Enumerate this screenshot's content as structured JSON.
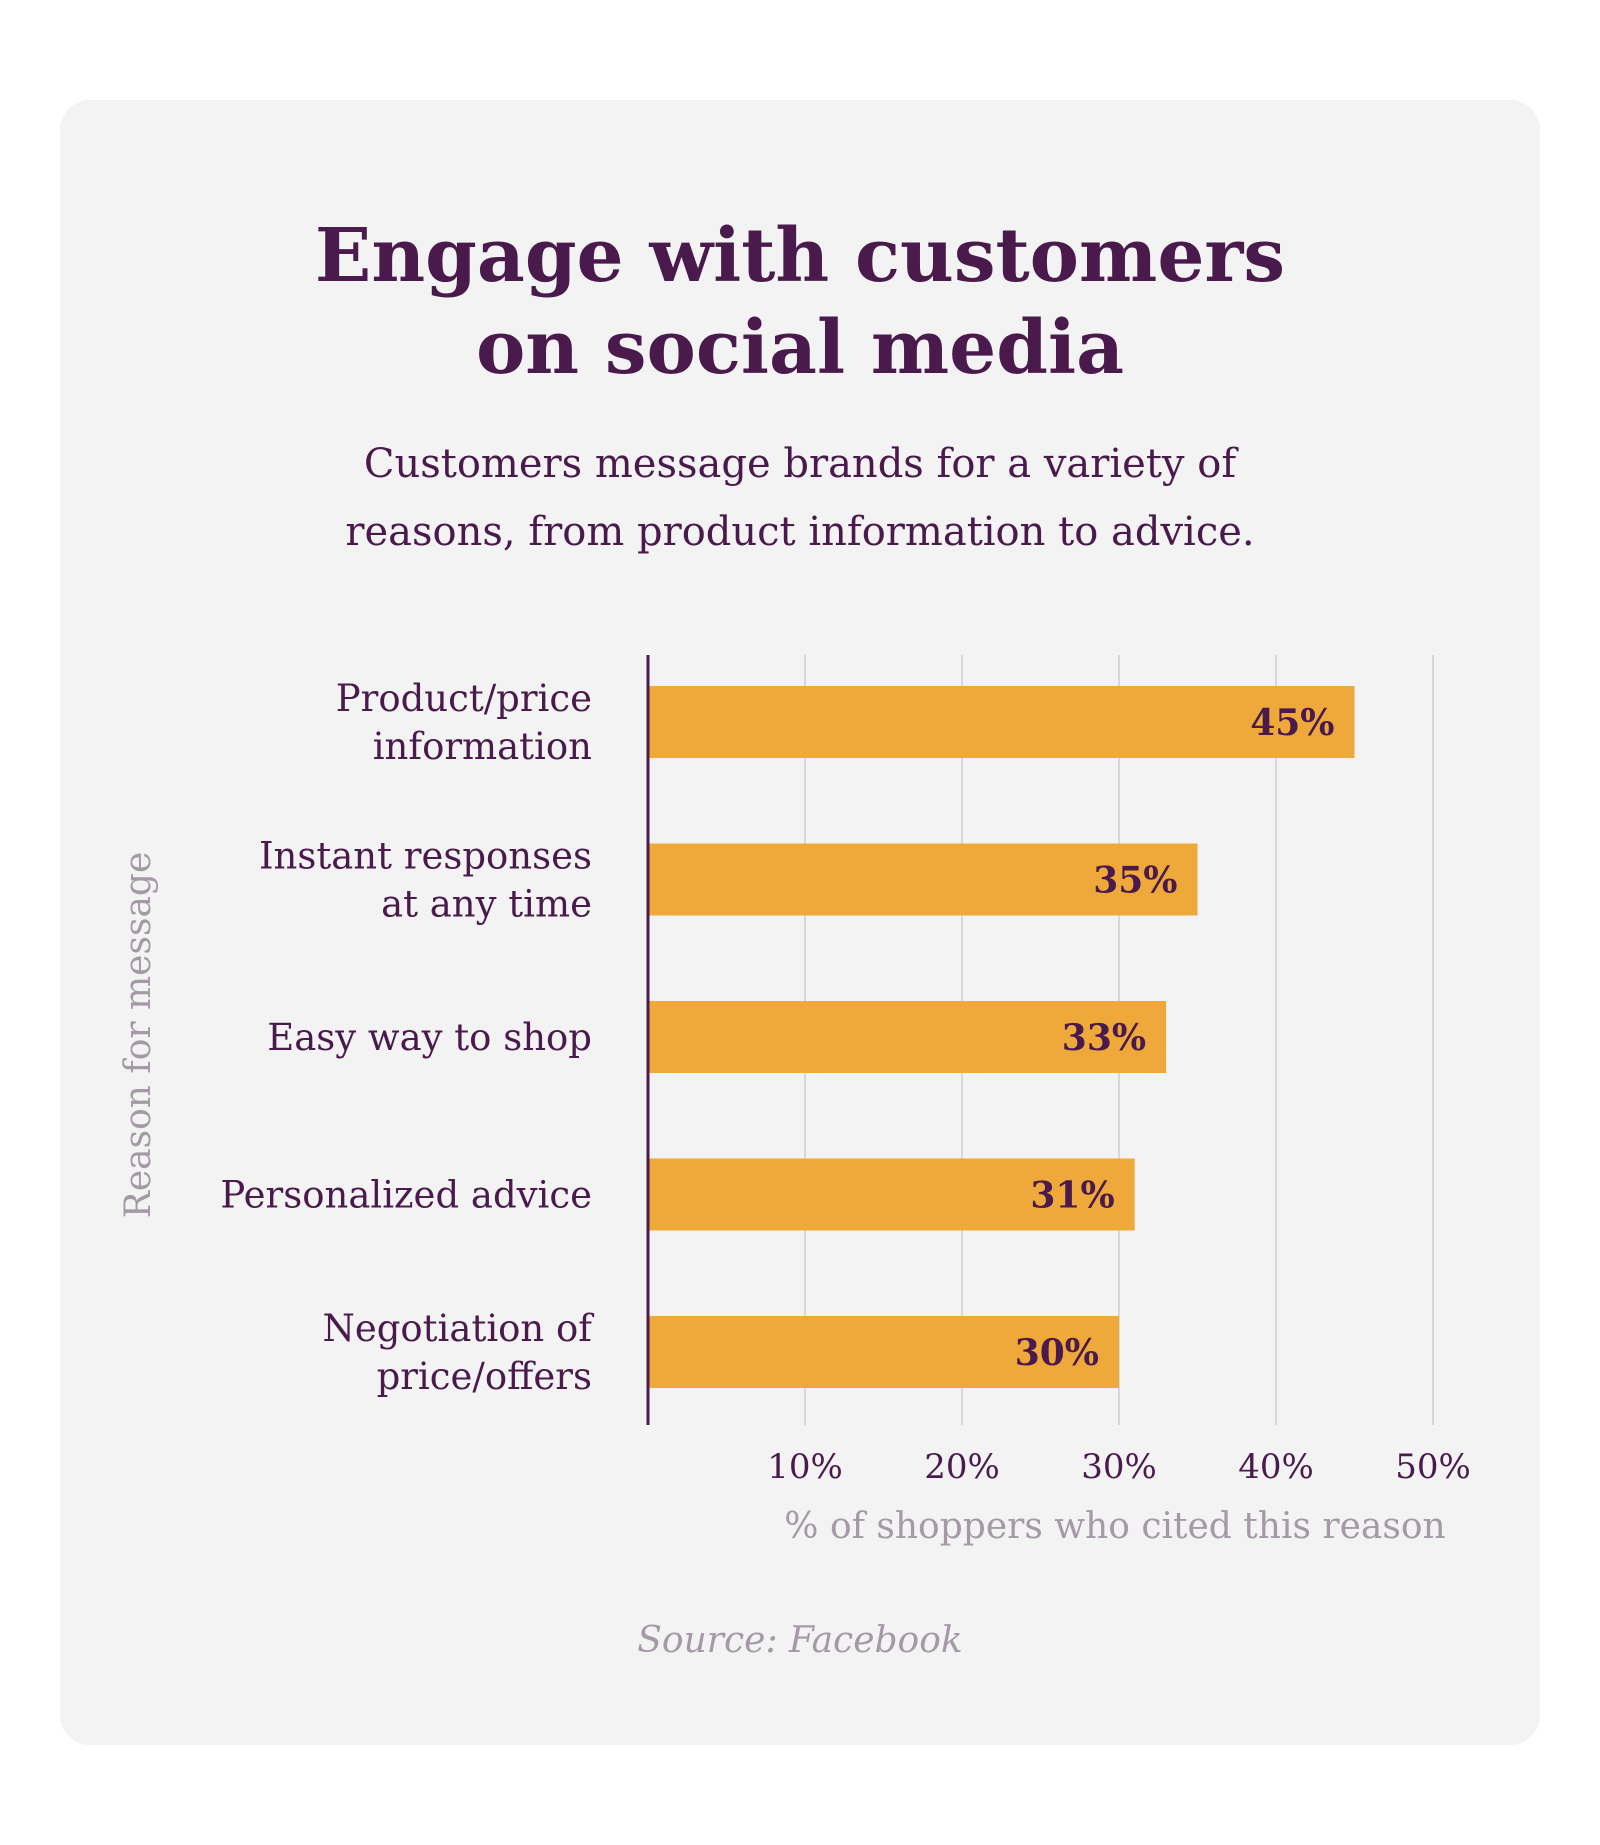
{
  "title_lines": [
    "Engage with customers",
    "on social media"
  ],
  "subtitle_lines": [
    "Customers message brands for a variety of",
    "reasons, from product information to advice."
  ],
  "source": "Source: Facebook",
  "colors": {
    "background": "#f2f3f2",
    "bar": "#efa83a",
    "text_primary": "#4a1a4c",
    "text_muted": "#a49aa6",
    "grid": "#d8d8d8"
  },
  "chart_data": {
    "type": "bar",
    "orientation": "horizontal",
    "categories": [
      [
        "Product/price",
        "information"
      ],
      [
        "Instant responses",
        "at any time"
      ],
      [
        "Easy way to shop"
      ],
      [
        "Personalized advice"
      ],
      [
        "Negotiation of",
        "price/offers"
      ]
    ],
    "values": [
      45,
      35,
      33,
      31,
      30
    ],
    "data_labels": [
      "45%",
      "35%",
      "33%",
      "31%",
      "30%"
    ],
    "xlim": [
      0,
      50
    ],
    "xticks": [
      10,
      20,
      30,
      40,
      50
    ],
    "xtick_labels": [
      "10%",
      "20%",
      "30%",
      "40%",
      "50%"
    ],
    "xlabel": "% of shoppers who cited this reason",
    "ylabel": "Reason for message",
    "grid": "vertical"
  }
}
